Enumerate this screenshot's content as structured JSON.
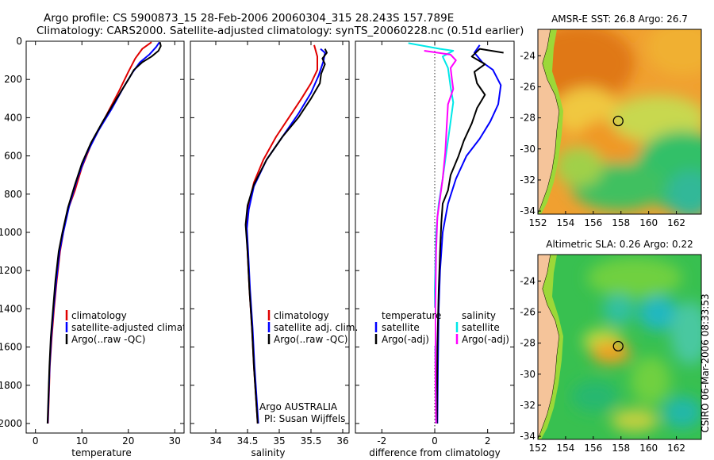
{
  "header": {
    "line1": "Argo profile: CS 5900873_15 28-Feb-2006 20060304_315 28.243S 157.789E",
    "line2": "Climatology: CARS2000. Satellite-adjusted climatology: synTS_20060228.nc (0.51d earlier)"
  },
  "colors": {
    "red": "#e00000",
    "blue": "#0000ff",
    "black": "#000000",
    "cyan": "#00e8e8",
    "magenta": "#ff00ff",
    "land": "#f5c49a"
  },
  "chart_data": [
    {
      "type": "line",
      "id": "temperature",
      "xlabel": "temperature",
      "ylabel": "",
      "xlim": [
        -2,
        32
      ],
      "ylim": [
        2050,
        0
      ],
      "xticks": [
        0,
        10,
        20,
        30
      ],
      "yticks": [
        0,
        200,
        400,
        600,
        800,
        1000,
        1200,
        1400,
        1600,
        1800,
        2000
      ],
      "legend": [
        "climatology",
        "satellite-adjusted climatology",
        "Argo(..raw -QC)"
      ],
      "series": [
        {
          "name": "climatology",
          "color": "red",
          "points": [
            [
              25,
              5
            ],
            [
              23,
              40
            ],
            [
              21.5,
              90
            ],
            [
              20,
              160
            ],
            [
              18,
              260
            ],
            [
              15,
              400
            ],
            [
              12,
              540
            ],
            [
              10,
              660
            ],
            [
              8.5,
              780
            ],
            [
              7,
              880
            ],
            [
              6,
              1000
            ],
            [
              5.3,
              1100
            ],
            [
              4.6,
              1250
            ],
            [
              4,
              1400
            ],
            [
              3.5,
              1550
            ],
            [
              3.1,
              1700
            ],
            [
              2.9,
              1850
            ],
            [
              2.7,
              2000
            ]
          ]
        },
        {
          "name": "satellite-adjusted climatology",
          "color": "blue",
          "points": [
            [
              26.7,
              5
            ],
            [
              26,
              30
            ],
            [
              24.5,
              70
            ],
            [
              22.5,
              110
            ],
            [
              21,
              160
            ],
            [
              19,
              240
            ],
            [
              16.5,
              350
            ],
            [
              13.5,
              470
            ],
            [
              11,
              590
            ],
            [
              9,
              720
            ],
            [
              7.3,
              860
            ],
            [
              6,
              1000
            ],
            [
              5.2,
              1100
            ],
            [
              4.5,
              1250
            ],
            [
              3.9,
              1400
            ],
            [
              3.4,
              1550
            ],
            [
              3.05,
              1700
            ],
            [
              2.85,
              1850
            ],
            [
              2.65,
              2000
            ]
          ]
        },
        {
          "name": "Argo(..raw -QC)",
          "color": "black",
          "points": [
            [
              26.8,
              5
            ],
            [
              27,
              25
            ],
            [
              26.5,
              50
            ],
            [
              25,
              80
            ],
            [
              23,
              110
            ],
            [
              21.2,
              150
            ],
            [
              20,
              200
            ],
            [
              17.5,
              300
            ],
            [
              14.5,
              420
            ],
            [
              12,
              530
            ],
            [
              10,
              640
            ],
            [
              8.5,
              750
            ],
            [
              7,
              870
            ],
            [
              5.8,
              1000
            ],
            [
              5,
              1100
            ],
            [
              4.3,
              1250
            ],
            [
              3.8,
              1400
            ],
            [
              3.3,
              1550
            ],
            [
              3,
              1700
            ],
            [
              2.8,
              1850
            ],
            [
              2.6,
              2000
            ]
          ]
        }
      ]
    },
    {
      "type": "line",
      "id": "salinity",
      "xlabel": "salinity",
      "ylabel": "",
      "xlim": [
        33.6,
        36.1
      ],
      "ylim": [
        2050,
        0
      ],
      "xticks": [
        34,
        34.5,
        35,
        35.5,
        36
      ],
      "legend": [
        "climatology",
        "satellite adj. clim.",
        "Argo(..raw -QC)"
      ],
      "annotation": [
        "Argo AUSTRALIA",
        "PI: Susan Wijffels"
      ],
      "series": [
        {
          "name": "climatology",
          "color": "red",
          "points": [
            [
              35.55,
              20
            ],
            [
              35.6,
              80
            ],
            [
              35.6,
              150
            ],
            [
              35.5,
              220
            ],
            [
              35.35,
              300
            ],
            [
              35.15,
              400
            ],
            [
              34.95,
              500
            ],
            [
              34.75,
              620
            ],
            [
              34.6,
              740
            ],
            [
              34.52,
              850
            ],
            [
              34.48,
              960
            ],
            [
              34.5,
              1100
            ],
            [
              34.53,
              1300
            ],
            [
              34.57,
              1500
            ],
            [
              34.6,
              1700
            ],
            [
              34.63,
              1850
            ],
            [
              34.66,
              2000
            ]
          ]
        },
        {
          "name": "satellite adj. clim.",
          "color": "blue",
          "points": [
            [
              35.65,
              40
            ],
            [
              35.72,
              60
            ],
            [
              35.7,
              100
            ],
            [
              35.62,
              180
            ],
            [
              35.5,
              270
            ],
            [
              35.3,
              380
            ],
            [
              35.05,
              500
            ],
            [
              34.8,
              620
            ],
            [
              34.6,
              760
            ],
            [
              34.52,
              880
            ],
            [
              34.49,
              980
            ],
            [
              34.51,
              1100
            ],
            [
              34.54,
              1300
            ],
            [
              34.58,
              1500
            ],
            [
              34.61,
              1700
            ],
            [
              34.64,
              1850
            ],
            [
              34.67,
              2000
            ]
          ]
        },
        {
          "name": "Argo(..raw -QC)",
          "color": "black",
          "points": [
            [
              35.72,
              40
            ],
            [
              35.75,
              60
            ],
            [
              35.68,
              90
            ],
            [
              35.72,
              120
            ],
            [
              35.66,
              170
            ],
            [
              35.64,
              220
            ],
            [
              35.5,
              300
            ],
            [
              35.3,
              400
            ],
            [
              35.05,
              500
            ],
            [
              34.8,
              620
            ],
            [
              34.6,
              750
            ],
            [
              34.5,
              860
            ],
            [
              34.47,
              960
            ],
            [
              34.5,
              1100
            ],
            [
              34.53,
              1300
            ],
            [
              34.57,
              1500
            ],
            [
              34.6,
              1700
            ],
            [
              34.63,
              1850
            ],
            [
              34.66,
              2000
            ]
          ]
        }
      ]
    },
    {
      "type": "line",
      "id": "difference",
      "xlabel": "difference from climatology",
      "ylabel": "",
      "xlim": [
        -3,
        3
      ],
      "ylim": [
        2050,
        0
      ],
      "xticks": [
        -2,
        0,
        2
      ],
      "legend_temperature_title": "temperature",
      "legend_salinity_title": "salinity",
      "legend_temperature": [
        "satellite",
        "Argo(-adj)"
      ],
      "legend_salinity": [
        "satellite",
        "Argo(-adj)"
      ],
      "series": [
        {
          "name": "temperature satellite",
          "color": "blue",
          "points": [
            [
              1.7,
              20
            ],
            [
              1.5,
              60
            ],
            [
              1.8,
              110
            ],
            [
              2.2,
              150
            ],
            [
              2.5,
              230
            ],
            [
              2.4,
              330
            ],
            [
              2.1,
              420
            ],
            [
              1.7,
              510
            ],
            [
              1.2,
              600
            ],
            [
              0.8,
              720
            ],
            [
              0.5,
              850
            ],
            [
              0.3,
              1000
            ],
            [
              0.2,
              1200
            ],
            [
              0.15,
              1400
            ],
            [
              0.12,
              1700
            ],
            [
              0.1,
              2000
            ]
          ]
        },
        {
          "name": "temperature Argo(-adj)",
          "color": "black",
          "points": [
            [
              2.6,
              60
            ],
            [
              1.7,
              40
            ],
            [
              1.4,
              80
            ],
            [
              1.9,
              120
            ],
            [
              1.5,
              160
            ],
            [
              1.6,
              220
            ],
            [
              1.9,
              280
            ],
            [
              1.6,
              350
            ],
            [
              1.4,
              430
            ],
            [
              1.1,
              520
            ],
            [
              0.9,
              600
            ],
            [
              0.6,
              700
            ],
            [
              0.5,
              780
            ],
            [
              0.3,
              850
            ],
            [
              0.25,
              950
            ],
            [
              0.2,
              1100
            ],
            [
              0.15,
              1300
            ],
            [
              0.1,
              1600
            ],
            [
              0.08,
              2000
            ]
          ]
        },
        {
          "name": "salinity satellite",
          "color": "cyan",
          "points": [
            [
              -1,
              10
            ],
            [
              0.2,
              40
            ],
            [
              0.7,
              50
            ],
            [
              0.3,
              80
            ],
            [
              0.5,
              140
            ],
            [
              0.6,
              240
            ],
            [
              0.7,
              320
            ],
            [
              0.6,
              420
            ],
            [
              0.5,
              520
            ],
            [
              0.4,
              620
            ],
            [
              0.3,
              720
            ],
            [
              0.15,
              850
            ],
            [
              0.05,
              1000
            ],
            [
              0,
              1300
            ],
            [
              0.02,
              1600
            ],
            [
              0.05,
              2000
            ]
          ]
        },
        {
          "name": "salinity Argo(-adj)",
          "color": "magenta",
          "points": [
            [
              -0.4,
              50
            ],
            [
              0.6,
              70
            ],
            [
              0.8,
              100
            ],
            [
              0.6,
              140
            ],
            [
              0.65,
              200
            ],
            [
              0.7,
              250
            ],
            [
              0.5,
              330
            ],
            [
              0.45,
              450
            ],
            [
              0.4,
              580
            ],
            [
              0.3,
              720
            ],
            [
              0.2,
              820
            ],
            [
              0.1,
              920
            ],
            [
              0.05,
              1100
            ],
            [
              0.02,
              1400
            ],
            [
              0.03,
              1800
            ],
            [
              0.05,
              2000
            ]
          ]
        }
      ]
    }
  ],
  "maps": [
    {
      "title": "AMSR-E SST: 26.8 Argo: 26.7",
      "xticks": [
        "152",
        "154",
        "156",
        "158",
        "160",
        "162"
      ],
      "yticks": [
        "-24",
        "-26",
        "-28",
        "-30",
        "-32",
        "-34"
      ],
      "lon_range": [
        152,
        163.8
      ],
      "lat_range": [
        -34.2,
        -22.3
      ],
      "marker": [
        157.8,
        -28.2
      ]
    },
    {
      "title": "Altimetric SLA: 0.26 Argo: 0.22",
      "xticks": [
        "152",
        "154",
        "156",
        "158",
        "160",
        "162"
      ],
      "yticks": [
        "-24",
        "-26",
        "-28",
        "-30",
        "-32",
        "-34"
      ],
      "lon_range": [
        152,
        163.8
      ],
      "lat_range": [
        -34.2,
        -22.3
      ],
      "marker": [
        157.8,
        -28.2
      ]
    }
  ],
  "footer": "CSIRO 06-Mar-2006 08:33:53"
}
